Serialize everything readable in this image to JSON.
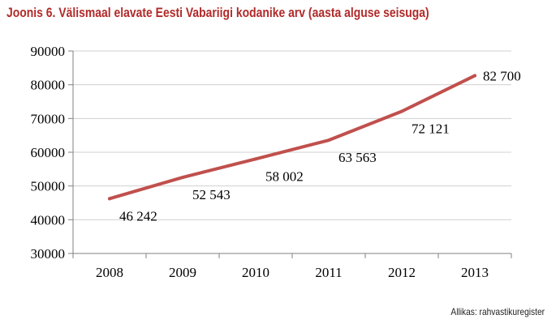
{
  "title": "Joonis 6. Välismaal elavate Eesti Vabariigi kodanike arv (aasta alguse seisuga)",
  "source": "Allikas: rahvastikuregister",
  "colors": {
    "title": "#b22a2a",
    "line": "#c0504d",
    "grid": "#d0d0d0"
  },
  "chart_data": {
    "type": "line",
    "categories": [
      "2008",
      "2009",
      "2010",
      "2011",
      "2012",
      "2013"
    ],
    "series": [
      {
        "values": [
          46242,
          52543,
          58002,
          63563,
          72121,
          82700
        ]
      }
    ],
    "data_labels": [
      "46 242",
      "52 543",
      "58 002",
      "63 563",
      "72 121",
      "82 700"
    ],
    "ylim": [
      30000,
      90000
    ],
    "yticks": [
      "30000",
      "40000",
      "50000",
      "60000",
      "70000",
      "80000",
      "90000"
    ],
    "grid": true,
    "legend": "none"
  }
}
